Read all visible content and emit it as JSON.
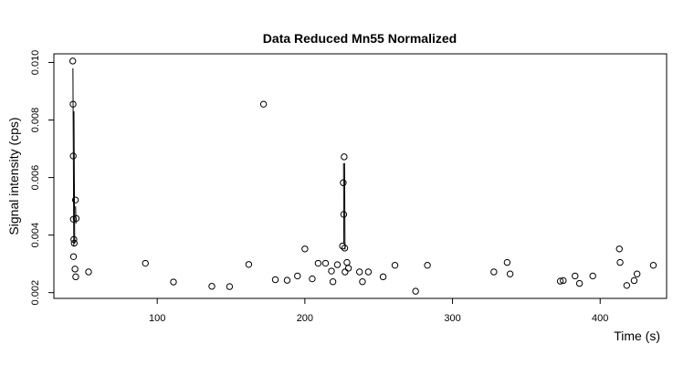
{
  "chart_data": {
    "type": "scatter",
    "title": "Data Reduced Mn55 Normalized",
    "xlabel": "Time (s)",
    "ylabel": "Signal intensity (cps)",
    "xlim": [
      30,
      445
    ],
    "ylim": [
      0.0018,
      0.0103
    ],
    "x_ticks": [
      100,
      200,
      300,
      400
    ],
    "x_tick_labels": [
      "100",
      "200",
      "300",
      "400"
    ],
    "y_ticks": [
      0.002,
      0.004,
      0.006,
      0.008,
      0.01
    ],
    "y_tick_labels": [
      "0.002",
      "0.004",
      "0.006",
      "0.008",
      "0.010"
    ],
    "grid": false,
    "points": [
      [
        42.8,
        0.01005
      ],
      [
        43.0,
        0.00855
      ],
      [
        43.1,
        0.00675
      ],
      [
        43.2,
        0.00455
      ],
      [
        43.3,
        0.00325
      ],
      [
        43.5,
        0.00385
      ],
      [
        43.8,
        0.00372
      ],
      [
        44.3,
        0.00282
      ],
      [
        44.8,
        0.00255
      ],
      [
        44.6,
        0.00522
      ],
      [
        45.1,
        0.00458
      ],
      [
        53.5,
        0.00272
      ],
      [
        92,
        0.00302
      ],
      [
        111,
        0.00237
      ],
      [
        137,
        0.00222
      ],
      [
        149,
        0.00221
      ],
      [
        162,
        0.00298
      ],
      [
        172,
        0.00855
      ],
      [
        180,
        0.00245
      ],
      [
        188,
        0.00243
      ],
      [
        195,
        0.00258
      ],
      [
        200,
        0.00352
      ],
      [
        205,
        0.00248
      ],
      [
        209,
        0.00302
      ],
      [
        214,
        0.00302
      ],
      [
        218,
        0.00275
      ],
      [
        219,
        0.00238
      ],
      [
        222,
        0.00297
      ],
      [
        225.5,
        0.00362
      ],
      [
        226,
        0.00582
      ],
      [
        226.3,
        0.00472
      ],
      [
        226.6,
        0.00672
      ],
      [
        227,
        0.00355
      ],
      [
        227.2,
        0.00272
      ],
      [
        228.5,
        0.00305
      ],
      [
        229.5,
        0.00285
      ],
      [
        237,
        0.00272
      ],
      [
        239,
        0.00238
      ],
      [
        243,
        0.00272
      ],
      [
        253,
        0.00255
      ],
      [
        261,
        0.00295
      ],
      [
        275,
        0.00205
      ],
      [
        283,
        0.00295
      ],
      [
        328,
        0.00272
      ],
      [
        337,
        0.00305
      ],
      [
        339,
        0.00265
      ],
      [
        373,
        0.0024
      ],
      [
        375,
        0.00242
      ],
      [
        383,
        0.00258
      ],
      [
        386,
        0.00232
      ],
      [
        395,
        0.00258
      ],
      [
        413,
        0.00352
      ],
      [
        413.5,
        0.00305
      ],
      [
        418,
        0.00225
      ],
      [
        423,
        0.00242
      ],
      [
        425,
        0.00265
      ],
      [
        436,
        0.00295
      ]
    ],
    "segments": [
      [
        [
          42.9,
          0.0098
        ],
        [
          43.5,
          0.0036
        ]
      ],
      [
        [
          43.6,
          0.0083
        ],
        [
          44.1,
          0.0037
        ]
      ],
      [
        [
          44.7,
          0.005
        ],
        [
          45.0,
          0.0044
        ]
      ],
      [
        [
          226.2,
          0.0065
        ],
        [
          226.4,
          0.0037
        ]
      ],
      [
        [
          226.9,
          0.0065
        ],
        [
          227.2,
          0.0035
        ]
      ]
    ]
  }
}
